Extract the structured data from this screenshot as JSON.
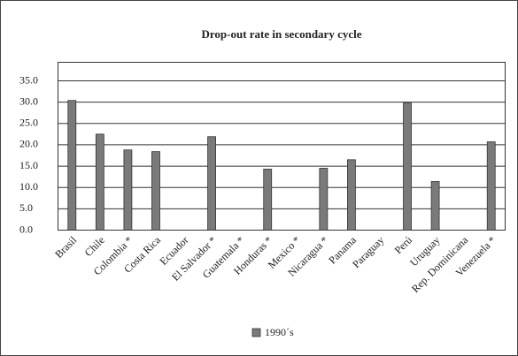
{
  "chart_data": {
    "type": "bar",
    "title": "Drop-out rate in secondary cycle",
    "categories": [
      "Brasil",
      "Chile",
      "Colombia *",
      "Costa Rica",
      "Ecuador",
      "El Salvador *",
      "Guatemala *",
      "Honduras *",
      "Mexico *",
      "Nicaragua *",
      "Panama",
      "Paraguay",
      "Perú",
      "Uruguay",
      "Rep. Dominicana",
      "Venezuela *"
    ],
    "series": [
      {
        "name": "1990´s",
        "color": "#7a7a7a",
        "values": [
          30.4,
          22.5,
          18.8,
          18.4,
          null,
          21.9,
          null,
          14.3,
          null,
          14.5,
          16.5,
          null,
          29.8,
          11.4,
          null,
          20.7
        ]
      }
    ],
    "ylim": [
      0,
      35
    ],
    "yticks": [
      {
        "value": 0,
        "label": "0.0"
      },
      {
        "value": 5,
        "label": "5.0"
      },
      {
        "value": 10,
        "label": "10.0"
      },
      {
        "value": 15,
        "label": "15.0"
      },
      {
        "value": 20,
        "label": "20.0"
      },
      {
        "value": 25,
        "label": "25.0"
      },
      {
        "value": 30,
        "label": "30.0"
      },
      {
        "value": 35,
        "label": "35.0"
      }
    ],
    "grid": true,
    "legend": "bottom"
  }
}
